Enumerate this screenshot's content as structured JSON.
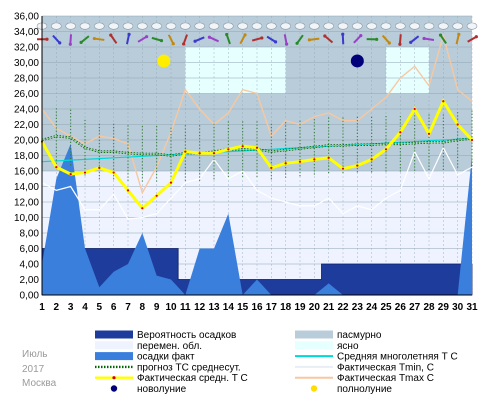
{
  "chart_data": {
    "type": "line",
    "x": [
      1,
      2,
      3,
      4,
      5,
      6,
      7,
      8,
      9,
      10,
      11,
      12,
      13,
      14,
      15,
      16,
      17,
      18,
      19,
      20,
      21,
      22,
      23,
      24,
      25,
      26,
      27,
      28,
      29,
      30,
      31
    ],
    "ylim": [
      0,
      36
    ],
    "yticks": [
      "0,00",
      "2,00",
      "4,00",
      "6,00",
      "8,00",
      "10,00",
      "12,00",
      "14,00",
      "16,00",
      "18,00",
      "20,00",
      "22,00",
      "24,00",
      "26,00",
      "28,00",
      "30,00",
      "32,00",
      "34,00",
      "36,00"
    ],
    "grid": true,
    "legend_position": "bottom",
    "series": [
      {
        "name": "Фактическая средн. T C",
        "color": "#ffff00",
        "values": [
          19.8,
          16.5,
          15.6,
          15.8,
          16.4,
          15.8,
          13.5,
          11.2,
          12.8,
          14.5,
          18.5,
          18.3,
          18.3,
          18.8,
          19.2,
          19.0,
          16.4,
          17.0,
          17.2,
          17.5,
          17.7,
          16.3,
          16.7,
          17.5,
          18.8,
          21.0,
          24.0,
          20.8,
          25.0,
          22.0,
          20.0
        ]
      },
      {
        "name": "Фактическая Tmax C",
        "color": "#f7c8a0",
        "values": [
          24.0,
          21.5,
          20.5,
          19.5,
          20.5,
          20.2,
          19.5,
          13.2,
          16.5,
          21.0,
          26.5,
          24.0,
          22.0,
          23.5,
          26.5,
          26.0,
          20.5,
          22.5,
          22.0,
          23.0,
          23.5,
          22.5,
          22.5,
          24.0,
          25.5,
          28.0,
          29.5,
          27.0,
          33.5,
          26.5,
          25.0
        ]
      },
      {
        "name": "Фактическая Tmin, C",
        "color": "#ffffff",
        "values": [
          14.5,
          13.5,
          14.0,
          11.0,
          11.0,
          13.0,
          9.8,
          10.0,
          10.5,
          12.5,
          14.5,
          15.0,
          17.5,
          15.0,
          16.0,
          13.5,
          12.5,
          12.0,
          11.5,
          11.5,
          12.5,
          10.5,
          11.5,
          11.0,
          12.5,
          13.5,
          18.5,
          15.0,
          19.0,
          15.5,
          16.5
        ]
      },
      {
        "name": "прогноз ТС среднесут.",
        "color": "#006400",
        "values": [
          20.0,
          20.5,
          20.3,
          19.0,
          18.5,
          18.5,
          18.3,
          18.2,
          18.2,
          18.0,
          18.3,
          18.3,
          18.5,
          18.8,
          18.8,
          18.8,
          18.5,
          18.7,
          18.9,
          19.1,
          19.3,
          19.3,
          19.4,
          19.4,
          19.5,
          19.5,
          19.6,
          19.7,
          19.7,
          20.0,
          20.2
        ]
      },
      {
        "name": "Средняя многолетняя Т С",
        "color": "#00d8d8",
        "values": [
          17.2,
          17.3,
          17.4,
          17.5,
          17.6,
          17.7,
          17.8,
          17.9,
          18.0,
          18.1,
          18.2,
          18.3,
          18.4,
          18.5,
          18.6,
          18.7,
          18.8,
          18.9,
          19.0,
          19.1,
          19.2,
          19.3,
          19.4,
          19.5,
          19.6,
          19.7,
          19.8,
          19.9,
          20.0,
          20.1,
          20.2
        ]
      },
      {
        "name": "осадки факт",
        "color": "#3a7fdc",
        "values": [
          4.0,
          15.0,
          19.5,
          6.0,
          1.0,
          3.0,
          4.0,
          8.0,
          2.5,
          2.0,
          0.0,
          6.0,
          6.0,
          10.5,
          0.0,
          2.0,
          0.0,
          0.0,
          0.0,
          0.0,
          1.5,
          0.0,
          0.0,
          0.0,
          0.0,
          0.0,
          0.0,
          0.0,
          0.0,
          0.0,
          18.0
        ]
      },
      {
        "name": "Вероятность осадков",
        "color": "#1e3c9c",
        "values": [
          6,
          6,
          6,
          6,
          6,
          6,
          6,
          6,
          6,
          6,
          2,
          2,
          2,
          2,
          2,
          2,
          2,
          2,
          2,
          2,
          4,
          4,
          4,
          4,
          4,
          4,
          4,
          4,
          4,
          4,
          4
        ]
      }
    ],
    "moon_events": [
      {
        "name": "полнолуние",
        "day": 9,
        "color": "#ffdd00"
      },
      {
        "name": "новолуние",
        "day": 23,
        "color": "#00007a"
      }
    ],
    "legend": [
      {
        "label": "Вероятность осадков",
        "swatch": "box",
        "color": "#1e3c9c"
      },
      {
        "label": "пасмурно",
        "swatch": "box",
        "color": "#b9ccd9"
      },
      {
        "label": "перемен. обл.",
        "swatch": "box",
        "color": "#eef3ff"
      },
      {
        "label": "ясно",
        "swatch": "box",
        "color": "#e6ffff"
      },
      {
        "label": "осадки факт",
        "swatch": "box",
        "color": "#3a7fdc"
      },
      {
        "label": "Средняя многолетняя Т С",
        "swatch": "line",
        "color": "#00d8d8"
      },
      {
        "label": "прогноз ТС среднесут.",
        "swatch": "dots",
        "color": "#006400"
      },
      {
        "label": "Фактическая Tmin, C",
        "swatch": "line",
        "color": "#ffffff"
      },
      {
        "label": "Фактическая средн. T C",
        "swatch": "yellowline",
        "color": "#ffff00"
      },
      {
        "label": "Фактическая Tmax C",
        "swatch": "line",
        "color": "#f7c8a0"
      },
      {
        "label": "новолуние",
        "swatch": "dot",
        "color": "#00007a"
      },
      {
        "label": "полнолуние",
        "swatch": "dot",
        "color": "#ffdd00"
      }
    ]
  },
  "meta": {
    "month": "Июль",
    "year": "2017",
    "city": "Москва"
  }
}
